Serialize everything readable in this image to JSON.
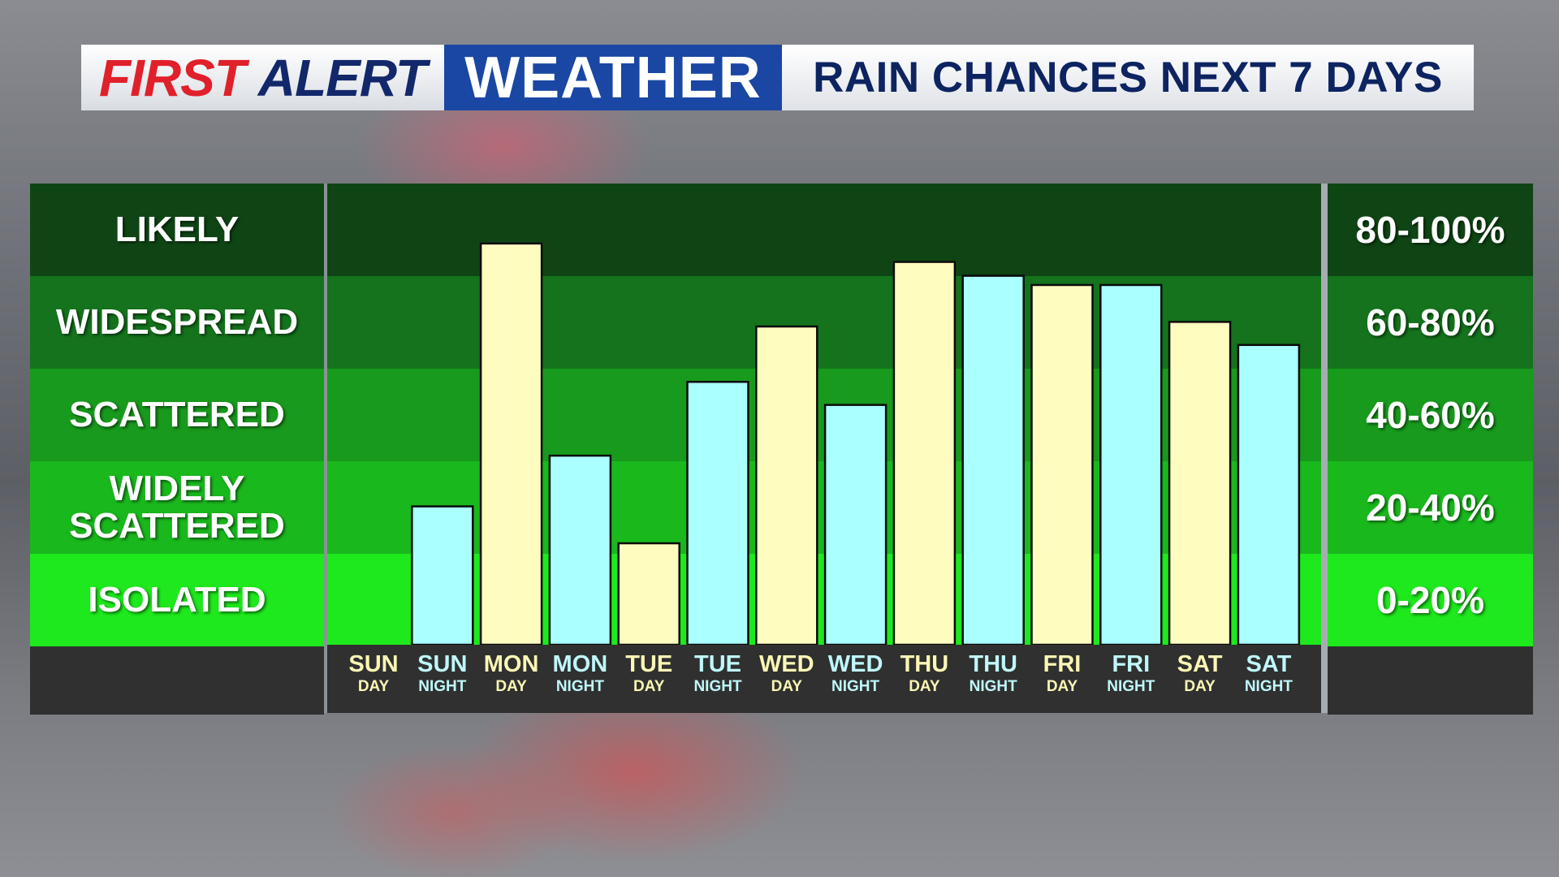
{
  "header": {
    "brand_first": "FIRST",
    "brand_alert": "ALERT",
    "brand_weather": "WEATHER",
    "title": "RAIN CHANCES NEXT 7 DAYS"
  },
  "colors": {
    "day_bar": "#fffcbf",
    "night_bar": "#aaffff",
    "brand_red": "#e0202a",
    "brand_blue": "#1a47a3"
  },
  "chart_data": {
    "type": "bar",
    "categories": [
      {
        "day": "SUN",
        "period": "DAY"
      },
      {
        "day": "SUN",
        "period": "NIGHT"
      },
      {
        "day": "MON",
        "period": "DAY"
      },
      {
        "day": "MON",
        "period": "NIGHT"
      },
      {
        "day": "TUE",
        "period": "DAY"
      },
      {
        "day": "TUE",
        "period": "NIGHT"
      },
      {
        "day": "WED",
        "period": "DAY"
      },
      {
        "day": "WED",
        "period": "NIGHT"
      },
      {
        "day": "THU",
        "period": "DAY"
      },
      {
        "day": "THU",
        "period": "NIGHT"
      },
      {
        "day": "FRI",
        "period": "DAY"
      },
      {
        "day": "FRI",
        "period": "NIGHT"
      },
      {
        "day": "SAT",
        "period": "DAY"
      },
      {
        "day": "SAT",
        "period": "NIGHT"
      }
    ],
    "values": [
      0,
      30,
      87,
      41,
      22,
      57,
      69,
      52,
      83,
      80,
      78,
      78,
      70,
      65
    ],
    "ylim": [
      0,
      100
    ],
    "bands": [
      {
        "label": "LIKELY",
        "range": "80-100%"
      },
      {
        "label": "WIDESPREAD",
        "range": "60-80%"
      },
      {
        "label": "SCATTERED",
        "range": "40-60%"
      },
      {
        "label": "WIDELY SCATTERED",
        "range": "20-40%"
      },
      {
        "label": "ISOLATED",
        "range": "0-20%"
      }
    ]
  }
}
